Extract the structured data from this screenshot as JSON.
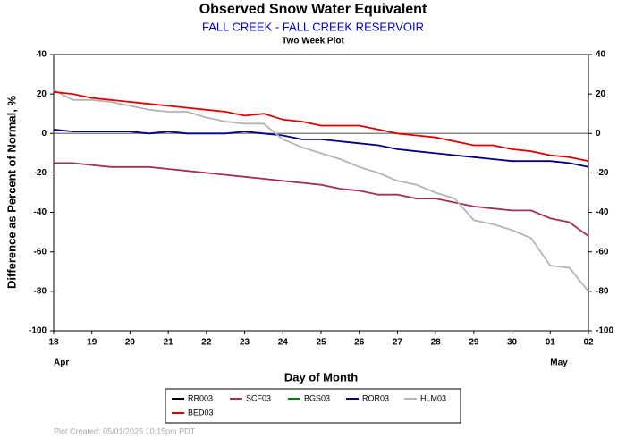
{
  "chart_data": {
    "type": "line",
    "title": "Observed Snow Water Equivalent",
    "subtitle": "FALL CREEK - FALL CREEK RESERVOIR",
    "subtitle2": "Two Week Plot",
    "y_label": "Difference as Percent of Normal, %",
    "x_label": "Day of Month",
    "footer": "Plot Created: 05/01/2025 10:15pm PDT",
    "x": [
      0,
      0.5,
      1,
      1.5,
      2,
      2.5,
      3,
      3.5,
      4,
      4.5,
      5,
      5.5,
      6,
      6.5,
      7,
      7.5,
      8,
      8.5,
      9,
      9.5,
      10,
      10.5,
      11,
      11.5,
      12,
      12.5,
      13,
      13.5,
      14
    ],
    "xlim": [
      0,
      14
    ],
    "xticks": [
      {
        "value": 0,
        "label": "18"
      },
      {
        "value": 1,
        "label": "19"
      },
      {
        "value": 2,
        "label": "20"
      },
      {
        "value": 3,
        "label": "21"
      },
      {
        "value": 4,
        "label": "22"
      },
      {
        "value": 5,
        "label": "23"
      },
      {
        "value": 6,
        "label": "24"
      },
      {
        "value": 7,
        "label": "25"
      },
      {
        "value": 8,
        "label": "26"
      },
      {
        "value": 9,
        "label": "27"
      },
      {
        "value": 10,
        "label": "28"
      },
      {
        "value": 11,
        "label": "29"
      },
      {
        "value": 12,
        "label": "30"
      },
      {
        "value": 13,
        "label": "01"
      },
      {
        "value": 14,
        "label": "02"
      }
    ],
    "month_labels": [
      {
        "value": 0,
        "label": "Apr"
      },
      {
        "value": 13,
        "label": "May"
      }
    ],
    "ylim": [
      -100,
      40
    ],
    "yticks": [
      40,
      20,
      0,
      -20,
      -40,
      -60,
      -80,
      -100
    ],
    "reference_y": 0,
    "series": [
      {
        "name": "RR003",
        "color": "#000000",
        "values": [
          null,
          null,
          null,
          null,
          null,
          null,
          null,
          null,
          null,
          null,
          null,
          null,
          null,
          null,
          null,
          null,
          null,
          null,
          null,
          null,
          null,
          null,
          null,
          null,
          null,
          null,
          null,
          null,
          null
        ]
      },
      {
        "name": "SCF03",
        "color": "#a0305a",
        "values": [
          -15,
          -15,
          -16,
          -17,
          -17,
          -17,
          -18,
          -19,
          -20,
          -21,
          -22,
          -23,
          -24,
          -25,
          -26,
          -28,
          -29,
          -31,
          -31,
          -33,
          -33,
          -35,
          -37,
          -38,
          -39,
          -39,
          -43,
          -45,
          -52
        ]
      },
      {
        "name": "BGS03",
        "color": "#008000",
        "values": [
          null,
          null,
          null,
          null,
          null,
          null,
          null,
          null,
          null,
          null,
          null,
          null,
          null,
          null,
          null,
          null,
          null,
          null,
          null,
          null,
          null,
          null,
          null,
          null,
          null,
          null,
          null,
          null,
          null
        ]
      },
      {
        "name": "ROR03",
        "color": "#00008b",
        "values": [
          2,
          1,
          1,
          1,
          1,
          0,
          1,
          0,
          0,
          0,
          1,
          0,
          -1,
          -3,
          -3,
          -4,
          -5,
          -6,
          -8,
          -9,
          -10,
          -11,
          -12,
          -13,
          -14,
          -14,
          -14,
          -15,
          -17
        ]
      },
      {
        "name": "HLM03",
        "color": "#b4b4b4",
        "values": [
          22,
          17,
          17,
          16,
          14,
          12,
          11,
          11,
          8,
          6,
          5,
          5,
          -3,
          -7,
          -10,
          -13,
          -17,
          -20,
          -24,
          -26,
          -30,
          -33,
          -44,
          -46,
          -49,
          -53,
          -67,
          -68,
          -80
        ]
      },
      {
        "name": "BED03",
        "color": "#e00000",
        "values": [
          21,
          20,
          18,
          17,
          16,
          15,
          14,
          13,
          12,
          11,
          9,
          10,
          7,
          6,
          4,
          4,
          4,
          2,
          0,
          -1,
          -2,
          -4,
          -6,
          -6,
          -8,
          -9,
          -11,
          -12,
          -14
        ]
      }
    ]
  }
}
